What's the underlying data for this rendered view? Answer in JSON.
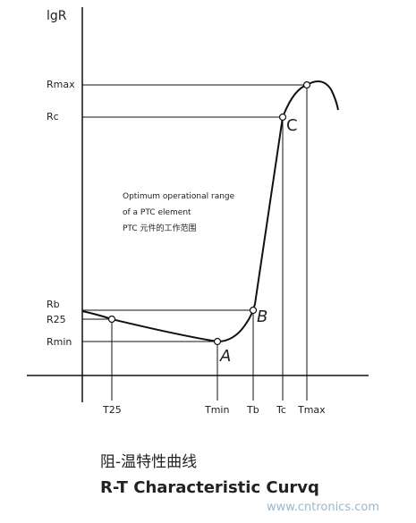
{
  "axis_label": "lgR",
  "y_labels": [
    "Rmax",
    "Rc",
    "Rb",
    "R25",
    "Rmin"
  ],
  "x_labels": [
    "T25",
    "Tmin",
    "Tb",
    "Tc",
    "Tmax"
  ],
  "points": [
    "A",
    "B",
    "C"
  ],
  "annotation": [
    "Optimum operational range",
    "of a PTC element",
    "PTC 元件的工作范围"
  ],
  "caption": {
    "title_cn": "阻-温特性曲线",
    "title_en": "R-T Characteristic Curvq"
  },
  "watermark": "www.cntronics.com"
}
